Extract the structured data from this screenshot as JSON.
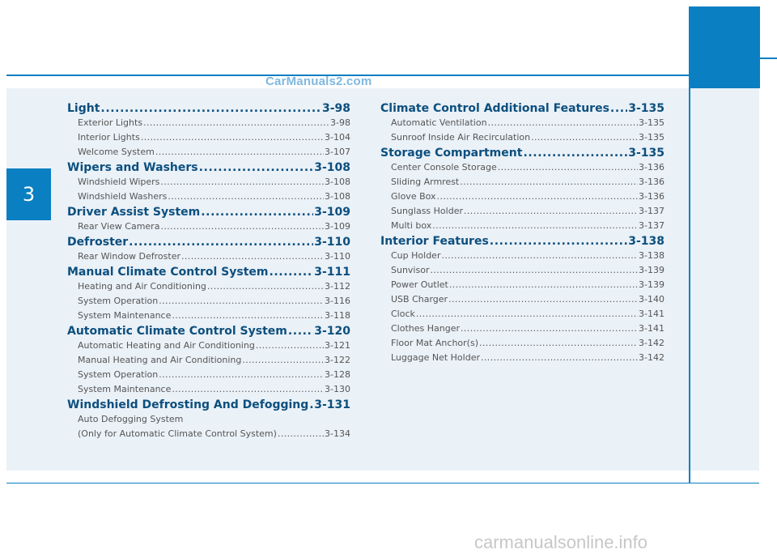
{
  "chapter_number": "3",
  "watermarks": {
    "top": "CarManuals2.com",
    "bottom": "carmanualsonline.info"
  },
  "left_column": [
    {
      "title": "Light",
      "page": "3-98",
      "items": [
        {
          "label": "Exterior Lights",
          "page": "3-98"
        },
        {
          "label": "Interior Lights",
          "page": "3-104"
        },
        {
          "label": "Welcome System",
          "page": "3-107"
        }
      ]
    },
    {
      "title": "Wipers and Washers",
      "page": "3-108",
      "items": [
        {
          "label": "Windshield Wipers",
          "page": "3-108"
        },
        {
          "label": "Windshield Washers",
          "page": "3-108"
        }
      ]
    },
    {
      "title": "Driver Assist System",
      "page": "3-109",
      "items": [
        {
          "label": "Rear View Camera",
          "page": "3-109"
        }
      ]
    },
    {
      "title": "Defroster",
      "page": "3-110",
      "items": [
        {
          "label": "Rear Window Defroster",
          "page": "3-110"
        }
      ]
    },
    {
      "title": "Manual Climate Control System",
      "page": "3-111",
      "items": [
        {
          "label": "Heating and Air Conditioning",
          "page": "3-112"
        },
        {
          "label": "System Operation",
          "page": "3-116"
        },
        {
          "label": "System Maintenance",
          "page": "3-118"
        }
      ]
    },
    {
      "title": "Automatic Climate Control System",
      "page": "3-120",
      "items": [
        {
          "label": "Automatic Heating and Air Conditioning",
          "page": "3-121"
        },
        {
          "label": "Manual Heating and Air Conditioning",
          "page": "3-122"
        },
        {
          "label": "System Operation",
          "page": "3-128"
        },
        {
          "label": "System Maintenance",
          "page": "3-130"
        }
      ]
    },
    {
      "title": "Windshield Defrosting And Defogging",
      "page": "3-131",
      "items": [
        {
          "label": "Auto Defogging System",
          "page": ""
        },
        {
          "label": "(Only for Automatic Climate Control System)",
          "page": "3-134"
        }
      ]
    }
  ],
  "right_column": [
    {
      "title": "Climate Control Additional Features",
      "page": "3-135",
      "items": [
        {
          "label": "Automatic Ventilation",
          "page": "3-135"
        },
        {
          "label": "Sunroof Inside Air Recirculation",
          "page": "3-135"
        }
      ]
    },
    {
      "title": "Storage Compartment",
      "page": "3-135",
      "items": [
        {
          "label": "Center Console Storage",
          "page": "3-136"
        },
        {
          "label": "Sliding Armrest",
          "page": "3-136"
        },
        {
          "label": "Glove Box",
          "page": "3-136"
        },
        {
          "label": "Sunglass Holder",
          "page": "3-137"
        },
        {
          "label": "Multi box",
          "page": "3-137"
        }
      ]
    },
    {
      "title": "Interior Features",
      "page": "3-138",
      "items": [
        {
          "label": "Cup Holder",
          "page": "3-138"
        },
        {
          "label": "Sunvisor",
          "page": "3-139"
        },
        {
          "label": "Power Outlet",
          "page": "3-139"
        },
        {
          "label": "USB Charger",
          "page": "3-140"
        },
        {
          "label": "Clock",
          "page": "3-141"
        },
        {
          "label": "Clothes Hanger",
          "page": "3-141"
        },
        {
          "label": "Floor Mat Anchor(s)",
          "page": "3-142"
        },
        {
          "label": "Luggage Net Holder",
          "page": "3-142"
        }
      ]
    }
  ],
  "colors": {
    "accent": "#0a7fc2",
    "heading": "#0d4f7e",
    "panel": "#eaf1f7",
    "subtext": "#555555"
  }
}
